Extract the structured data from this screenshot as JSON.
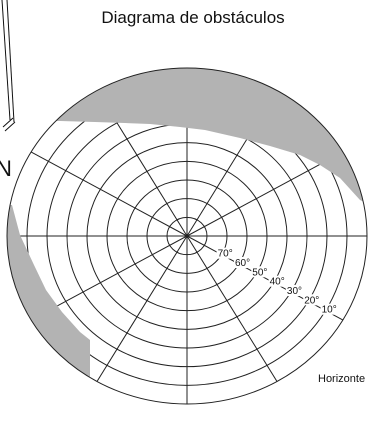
{
  "title": "Diagrama de obstáculos",
  "north_label": "N",
  "horizon_label": "Horizonte",
  "elevation_labels": [
    "10°",
    "20°",
    "30°",
    "40°",
    "50°",
    "60°",
    "70°"
  ],
  "colors": {
    "obstacle": "#b3b3b3",
    "grid": "#222222"
  }
}
